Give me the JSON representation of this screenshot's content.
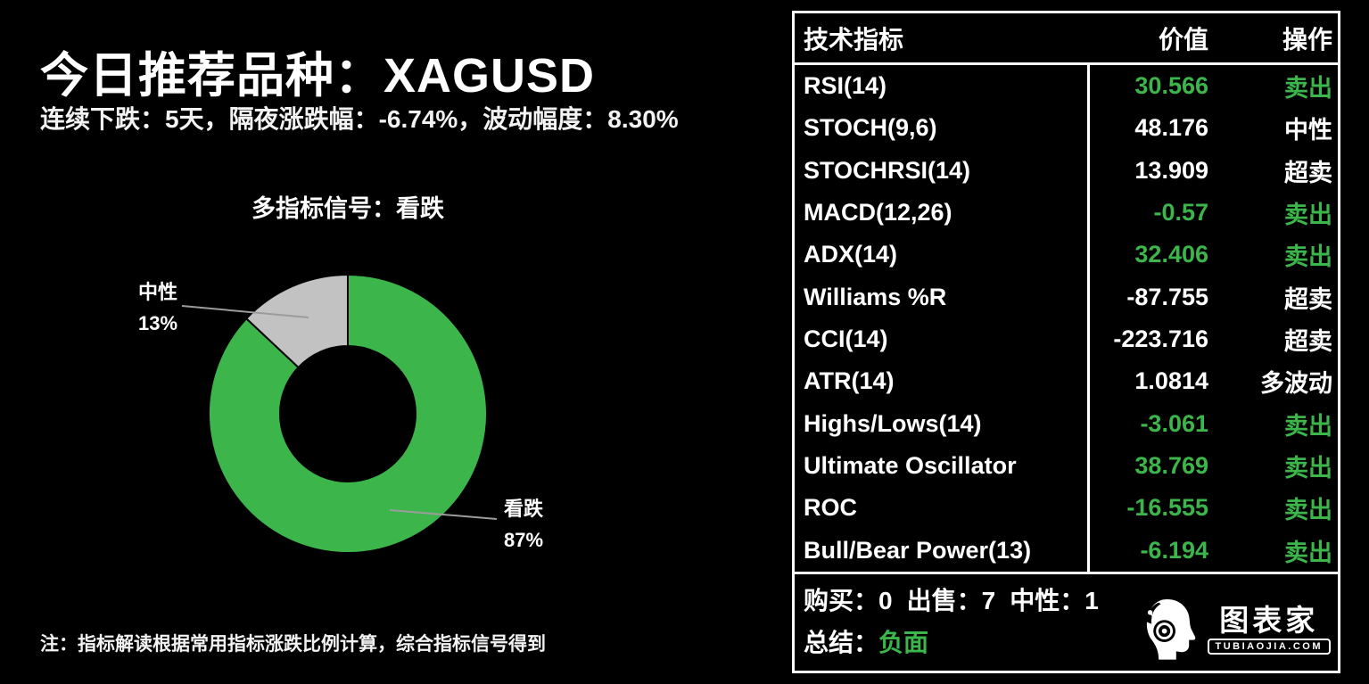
{
  "page": {
    "title": "今日推荐品种：XAGUSD",
    "subtitle": "连续下跌：5天，隔夜涨跌幅：-6.74%，波动幅度：8.30%",
    "note": "注：指标解读根据常用指标涨跌比例计算，综合指标信号得到"
  },
  "chart_data": {
    "type": "pie",
    "title": "多指标信号：看跌",
    "donut": true,
    "inner_radius_ratio": 0.49,
    "start_angle": "top",
    "direction": "clockwise",
    "slices": [
      {
        "label": "看跌",
        "value": 87,
        "pct_label": "87%",
        "color": "#3cb54a"
      },
      {
        "label": "中性",
        "value": 13,
        "pct_label": "13%",
        "color": "#c2c2c2"
      }
    ]
  },
  "table": {
    "headers": {
      "indicator": "技术指标",
      "value": "价值",
      "action": "操作"
    },
    "rows": [
      {
        "name": "RSI(14)",
        "value": "30.566",
        "action": "卖出",
        "tone": "green"
      },
      {
        "name": "STOCH(9,6)",
        "value": "48.176",
        "action": "中性",
        "tone": "white"
      },
      {
        "name": "STOCHRSI(14)",
        "value": "13.909",
        "action": "超卖",
        "tone": "white"
      },
      {
        "name": "MACD(12,26)",
        "value": "-0.57",
        "action": "卖出",
        "tone": "green"
      },
      {
        "name": "ADX(14)",
        "value": "32.406",
        "action": "卖出",
        "tone": "green"
      },
      {
        "name": "Williams %R",
        "value": "-87.755",
        "action": "超卖",
        "tone": "white"
      },
      {
        "name": "CCI(14)",
        "value": "-223.716",
        "action": "超卖",
        "tone": "white"
      },
      {
        "name": "ATR(14)",
        "value": "1.0814",
        "action": "多波动",
        "tone": "white"
      },
      {
        "name": "Highs/Lows(14)",
        "value": "-3.061",
        "action": "卖出",
        "tone": "green"
      },
      {
        "name": "Ultimate Oscillator",
        "value": "38.769",
        "action": "卖出",
        "tone": "green"
      },
      {
        "name": "ROC",
        "value": "-16.555",
        "action": "卖出",
        "tone": "green"
      },
      {
        "name": "Bull/Bear Power(13)",
        "value": "-6.194",
        "action": "卖出",
        "tone": "green"
      }
    ],
    "summary": {
      "buy_label": "购买：",
      "buy": "0",
      "sell_label": "出售：",
      "sell": "7",
      "neutral_label": "中性：",
      "neutral": "1",
      "conclusion_label": "总结：",
      "conclusion": "负面"
    }
  },
  "logo": {
    "brand": "图表家",
    "domain": "TUBIAOJIA.COM"
  },
  "colors": {
    "green": "#3cb54a",
    "gray": "#c2c2c2",
    "leader": "#9c9c9c",
    "bg": "#000000",
    "text": "#ffffff"
  }
}
